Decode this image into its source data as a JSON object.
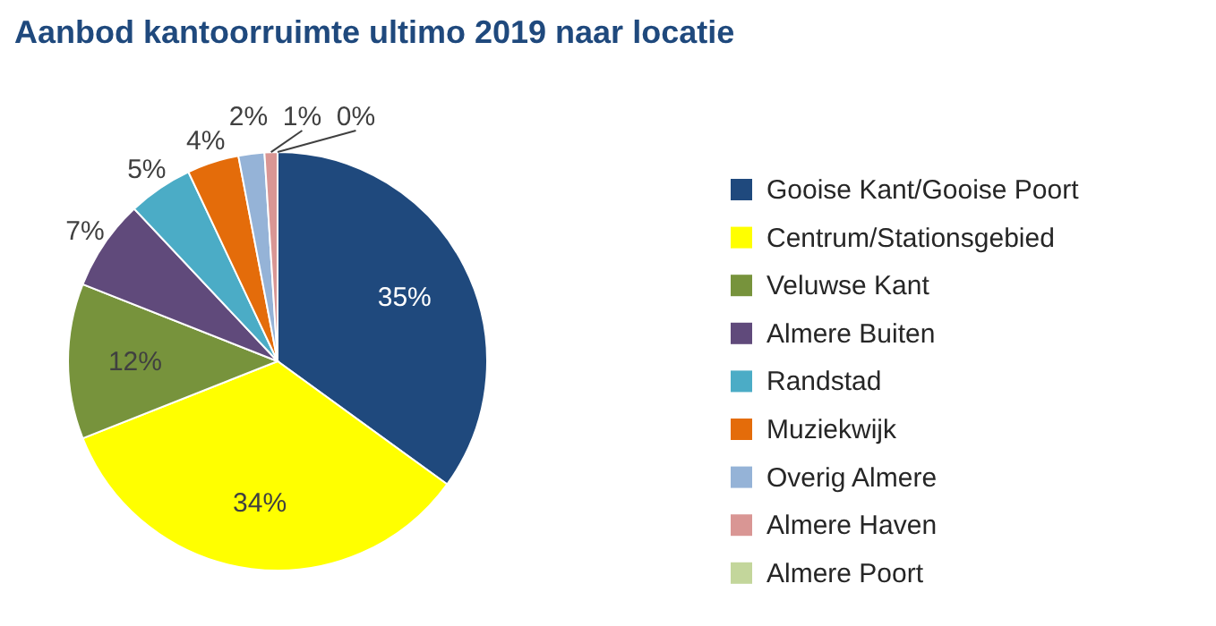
{
  "chart_data": {
    "type": "pie",
    "title": "Aanbod kantoorruimte ultimo 2019 naar locatie",
    "categories": [
      "Gooise Kant/Gooise Poort",
      "Centrum/Stationsgebied",
      "Veluwse Kant",
      "Almere Buiten",
      "Randstad",
      "Muziekwijk",
      "Overig Almere",
      "Almere Haven",
      "Almere Poort"
    ],
    "values": [
      35,
      34,
      12,
      7,
      5,
      4,
      2,
      1,
      0
    ],
    "colors": [
      "#1f497d",
      "#ffff00",
      "#77933c",
      "#604a7b",
      "#4bacc6",
      "#e46c0a",
      "#95b3d7",
      "#d99694",
      "#c3d69b"
    ],
    "value_labels": [
      "35%",
      "34%",
      "12%",
      "7%",
      "5%",
      "4%",
      "2%",
      "1%",
      "0%"
    ],
    "legend": "right"
  }
}
